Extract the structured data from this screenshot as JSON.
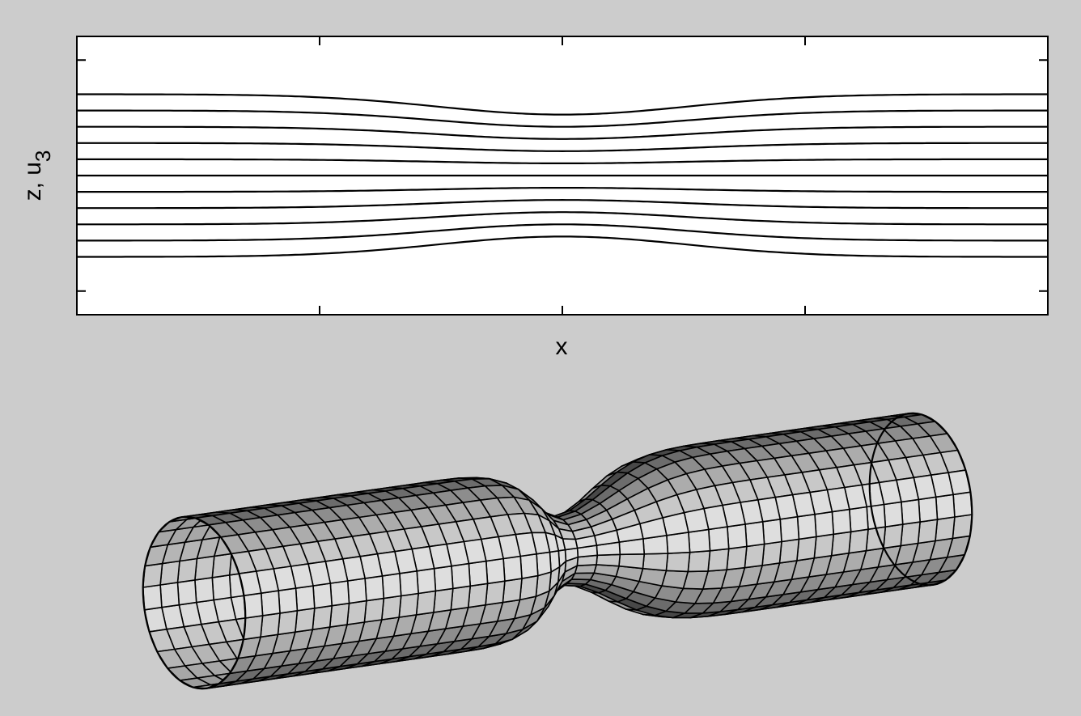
{
  "figure": {
    "background": "#cccccc",
    "plot_background": "#ffffff",
    "line_color": "#000000"
  },
  "top_panel": {
    "xlabel": "x",
    "ylabel_main": "z, u",
    "ylabel_sub": "3",
    "x_ticks": 3,
    "y_ticks": 2,
    "streamlines": {
      "count": 11,
      "level_range": [
        -5,
        5
      ],
      "outer_deflection": 1.25,
      "bump_width": 0.27
    }
  },
  "bottom_panel": {
    "object": "pipe-with-constriction",
    "rings": 42,
    "segments": 24,
    "constriction_center": 0.5,
    "constriction_depth": 0.6,
    "shade_dark": "#2e2e2e",
    "shade_light": "#e6e6e6"
  }
}
